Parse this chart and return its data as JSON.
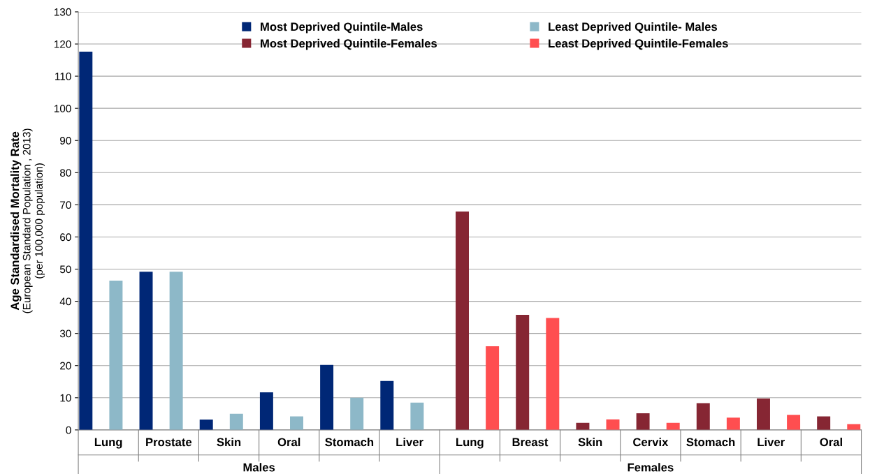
{
  "chart_data": {
    "type": "bar",
    "ylabel": "Age Standardised Mortality Rate\n(European Standard Population , 2013)\n(per 100,000 population)",
    "categories": [
      "Lung",
      "Prostate",
      "Skin",
      "Oral",
      "Stomach",
      "Liver",
      "Lung",
      "Breast",
      "Skin",
      "Cervix",
      "Stomach",
      "Liver",
      "Oral"
    ],
    "series": [
      {
        "name": "Most Deprived Quintile-Males",
        "color": "#002776",
        "values": [
          117.6,
          49.2,
          3.2,
          11.7,
          20.2,
          15.2,
          null,
          null,
          null,
          null,
          null,
          null,
          null
        ]
      },
      {
        "name": "Most Deprived Quintile-Females",
        "color": "#862633",
        "values": [
          null,
          null,
          null,
          null,
          null,
          null,
          67.9,
          35.8,
          2.2,
          5.2,
          8.3,
          9.8,
          4.2
        ]
      },
      {
        "name": "Least Deprived Quintile- Males",
        "color": "#8db8c8",
        "values": [
          46.4,
          49.2,
          5.0,
          4.2,
          10.0,
          8.5,
          null,
          null,
          null,
          null,
          null,
          null,
          null
        ]
      },
      {
        "name": "Least Deprived Quintile-Females",
        "color": "#ff4e50",
        "values": [
          null,
          null,
          null,
          null,
          null,
          null,
          26.0,
          34.8,
          3.3,
          2.2,
          3.8,
          4.7,
          1.8
        ]
      }
    ],
    "annotations": [
      "Males",
      "Females"
    ],
    "ylim": [
      0,
      130
    ],
    "yticks": [
      0,
      10,
      20,
      30,
      40,
      50,
      60,
      70,
      80,
      90,
      100,
      110,
      120,
      130
    ],
    "grid": "y",
    "legend": "top"
  }
}
